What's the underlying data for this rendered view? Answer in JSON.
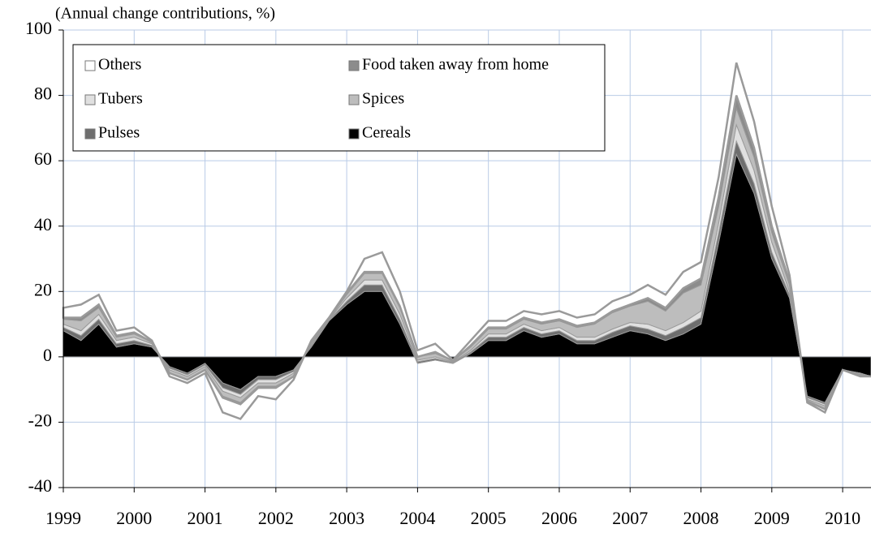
{
  "chart_data": {
    "type": "stacked_area",
    "y_axis_label": "(Annual change contributions, %)",
    "x": [
      1999,
      1999.25,
      1999.5,
      1999.75,
      2000,
      2000.25,
      2000.5,
      2000.75,
      2001,
      2001.25,
      2001.5,
      2001.75,
      2002,
      2002.25,
      2002.5,
      2002.75,
      2003,
      2003.25,
      2003.5,
      2003.75,
      2004,
      2004.25,
      2004.5,
      2004.75,
      2005,
      2005.25,
      2005.5,
      2005.75,
      2006,
      2006.25,
      2006.5,
      2006.75,
      2007,
      2007.25,
      2007.5,
      2007.75,
      2008,
      2008.25,
      2008.5,
      2008.75,
      2009,
      2009.25,
      2009.5,
      2009.75,
      2010,
      2010.25,
      2010.4
    ],
    "xlim": [
      1999,
      2010.4
    ],
    "xticks": [
      1999,
      2000,
      2001,
      2002,
      2003,
      2004,
      2005,
      2006,
      2007,
      2008,
      2009,
      2010
    ],
    "ylim": [
      -40,
      100
    ],
    "yticks": [
      -40,
      -20,
      0,
      20,
      40,
      60,
      80,
      100
    ],
    "grid": true,
    "legend_position": "upper left",
    "series": [
      {
        "name": "Cereals",
        "color": "#000000",
        "values": [
          8,
          5,
          10,
          3,
          4,
          3,
          -3,
          -5,
          -2,
          -8,
          -10,
          -6,
          -6,
          -4,
          3,
          11,
          16,
          20,
          20,
          10,
          -2,
          -1,
          -2,
          1,
          5,
          5,
          8,
          6,
          7,
          4,
          4,
          6,
          8,
          7,
          5,
          7,
          10,
          35,
          62,
          50,
          30,
          18,
          -12,
          -14,
          -4,
          -5,
          -6
        ]
      },
      {
        "name": "Pulses",
        "color": "#6e6e6e",
        "values": [
          1,
          1.5,
          1.5,
          1,
          1,
          0.5,
          -0.5,
          -0.5,
          -0.5,
          -1.5,
          -1.5,
          -1,
          -1,
          -0.5,
          0.5,
          0.2,
          1,
          2,
          2,
          1.5,
          0.5,
          0.5,
          0.2,
          0.5,
          1,
          1,
          1,
          1,
          1,
          1,
          1,
          1.5,
          1.5,
          1.5,
          1.5,
          2,
          2,
          3,
          4,
          3,
          2,
          1,
          -0.5,
          -0.5,
          0,
          0,
          0
        ]
      },
      {
        "name": "Tubers",
        "color": "#e0e0e0",
        "values": [
          1,
          1.5,
          1.5,
          1,
          1,
          0.5,
          -0.5,
          -0.5,
          -0.5,
          -1,
          -1,
          -1,
          -1,
          -0.5,
          0.5,
          0.2,
          1,
          1.5,
          1.5,
          1.5,
          0.5,
          0.5,
          0.2,
          0.5,
          1,
          1,
          1,
          1,
          1,
          1,
          1,
          1,
          1,
          1.5,
          1.5,
          1.5,
          2,
          3,
          5,
          4,
          3,
          1,
          -0.5,
          -0.5,
          0,
          0,
          0
        ]
      },
      {
        "name": "Spices",
        "color": "#bdbdbd",
        "values": [
          1.5,
          3,
          2,
          1,
          1,
          0.5,
          -1,
          -1,
          -1,
          -1.5,
          -1.5,
          -1,
          -1,
          -1,
          0.5,
          0.3,
          1,
          2,
          2,
          2,
          1,
          1,
          0.3,
          1,
          1.5,
          1.5,
          1.5,
          2,
          2,
          3,
          4,
          5,
          5,
          7,
          6,
          9,
          8,
          5,
          5,
          4,
          3,
          2,
          -0.5,
          -1,
          0,
          -0.5,
          0
        ]
      },
      {
        "name": "Food taken away from home",
        "color": "#8c8c8c",
        "values": [
          0.5,
          1,
          1,
          0.5,
          0.5,
          0,
          0,
          0,
          0,
          -0.5,
          -0.5,
          -0.5,
          -0.5,
          0,
          0,
          0,
          0.5,
          0.5,
          0.5,
          0.5,
          0,
          0.5,
          0,
          0.5,
          0.5,
          0.5,
          0.5,
          0.5,
          0.5,
          0.5,
          0.5,
          0.5,
          0.5,
          1,
          1,
          1.5,
          2,
          3,
          4,
          3,
          2,
          1,
          0,
          0,
          0,
          0,
          0
        ]
      },
      {
        "name": "Others",
        "color": "#ffffff",
        "values": [
          3,
          4,
          3,
          1.5,
          1.5,
          0.5,
          -1,
          -1,
          -1,
          -4.5,
          -4.5,
          -2.5,
          -3.5,
          -1,
          0.5,
          0.3,
          0.5,
          4,
          6,
          4.5,
          2,
          2.5,
          0.3,
          1.5,
          2,
          2,
          2,
          2.5,
          2.5,
          2.5,
          2.5,
          3,
          3,
          4,
          4,
          5,
          5,
          6,
          10,
          8,
          6,
          2,
          -0.5,
          -1,
          0,
          -0.5,
          0
        ]
      }
    ],
    "legend_order": [
      "Others",
      "Food taken away from home",
      "Tubers",
      "Spices",
      "Pulses",
      "Cereals"
    ]
  }
}
